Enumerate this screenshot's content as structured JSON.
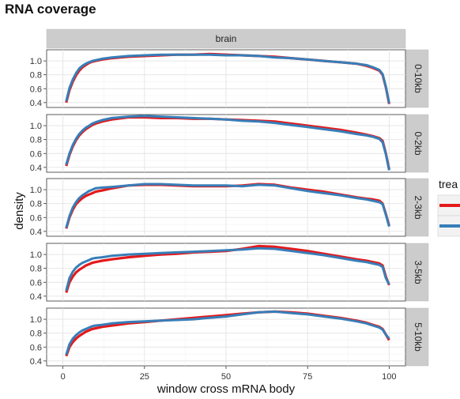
{
  "chart_data": {
    "type": "line",
    "title": "RNA coverage",
    "xlabel": "window cross mRNA body",
    "ylabel": "density",
    "column_strip": "brain",
    "xlim": [
      -5,
      105
    ],
    "x_ticks": [
      0,
      25,
      50,
      75,
      100
    ],
    "y_ticks": [
      0.4,
      0.6,
      0.8,
      1.0
    ],
    "ylim": [
      0.33,
      1.16
    ],
    "grid": true,
    "legend": {
      "title": "trea",
      "position": "right",
      "colors": [
        "#e41a1c",
        "#377eb8"
      ]
    },
    "x": [
      1,
      2,
      3,
      4,
      5,
      6,
      7,
      8,
      9,
      10,
      12,
      15,
      20,
      25,
      30,
      35,
      40,
      45,
      50,
      55,
      60,
      65,
      70,
      75,
      80,
      85,
      90,
      93,
      95,
      97,
      98,
      99,
      100
    ],
    "panels": [
      {
        "label": "0-10kb",
        "series": [
          {
            "color": "#e41a1c",
            "values": [
              0.4,
              0.58,
              0.7,
              0.79,
              0.86,
              0.91,
              0.94,
              0.97,
              0.99,
              1.0,
              1.02,
              1.04,
              1.06,
              1.07,
              1.08,
              1.09,
              1.09,
              1.1,
              1.09,
              1.08,
              1.07,
              1.06,
              1.04,
              1.02,
              1.0,
              0.98,
              0.96,
              0.93,
              0.9,
              0.86,
              0.8,
              0.62,
              0.38
            ]
          },
          {
            "color": "#377eb8",
            "values": [
              0.42,
              0.61,
              0.73,
              0.82,
              0.89,
              0.93,
              0.96,
              0.98,
              1.0,
              1.01,
              1.03,
              1.05,
              1.07,
              1.08,
              1.09,
              1.09,
              1.09,
              1.09,
              1.08,
              1.08,
              1.07,
              1.05,
              1.04,
              1.02,
              1.0,
              0.98,
              0.96,
              0.94,
              0.91,
              0.87,
              0.81,
              0.63,
              0.39
            ]
          }
        ]
      },
      {
        "label": "0-2kb",
        "series": [
          {
            "color": "#e41a1c",
            "values": [
              0.42,
              0.58,
              0.7,
              0.79,
              0.86,
              0.91,
              0.95,
              0.98,
              1.01,
              1.03,
              1.06,
              1.09,
              1.12,
              1.12,
              1.11,
              1.11,
              1.1,
              1.1,
              1.09,
              1.08,
              1.07,
              1.06,
              1.03,
              1.0,
              0.97,
              0.94,
              0.9,
              0.87,
              0.85,
              0.82,
              0.78,
              0.6,
              0.37
            ]
          },
          {
            "color": "#377eb8",
            "values": [
              0.44,
              0.6,
              0.72,
              0.81,
              0.88,
              0.93,
              0.97,
              1.0,
              1.03,
              1.05,
              1.08,
              1.11,
              1.13,
              1.14,
              1.13,
              1.12,
              1.11,
              1.1,
              1.09,
              1.07,
              1.06,
              1.04,
              1.01,
              0.98,
              0.95,
              0.92,
              0.88,
              0.86,
              0.84,
              0.81,
              0.76,
              0.59,
              0.36
            ]
          }
        ]
      },
      {
        "label": "2-3kb",
        "series": [
          {
            "color": "#e41a1c",
            "values": [
              0.44,
              0.6,
              0.71,
              0.79,
              0.84,
              0.88,
              0.91,
              0.93,
              0.95,
              0.97,
              0.99,
              1.02,
              1.06,
              1.07,
              1.07,
              1.06,
              1.05,
              1.05,
              1.05,
              1.06,
              1.08,
              1.07,
              1.03,
              1.0,
              0.97,
              0.93,
              0.89,
              0.87,
              0.86,
              0.84,
              0.8,
              0.65,
              0.48
            ]
          },
          {
            "color": "#377eb8",
            "values": [
              0.45,
              0.62,
              0.74,
              0.82,
              0.88,
              0.92,
              0.95,
              0.98,
              1.0,
              1.02,
              1.03,
              1.04,
              1.06,
              1.08,
              1.08,
              1.07,
              1.06,
              1.06,
              1.06,
              1.05,
              1.07,
              1.06,
              1.02,
              0.98,
              0.95,
              0.92,
              0.88,
              0.86,
              0.84,
              0.82,
              0.79,
              0.64,
              0.47
            ]
          }
        ]
      },
      {
        "label": "3-5kb",
        "series": [
          {
            "color": "#e41a1c",
            "values": [
              0.45,
              0.6,
              0.68,
              0.74,
              0.78,
              0.81,
              0.84,
              0.86,
              0.88,
              0.89,
              0.91,
              0.93,
              0.96,
              0.98,
              1.0,
              1.01,
              1.03,
              1.04,
              1.05,
              1.08,
              1.12,
              1.11,
              1.08,
              1.05,
              1.01,
              0.97,
              0.93,
              0.91,
              0.89,
              0.87,
              0.84,
              0.68,
              0.56
            ]
          },
          {
            "color": "#377eb8",
            "values": [
              0.48,
              0.66,
              0.75,
              0.81,
              0.85,
              0.88,
              0.9,
              0.92,
              0.94,
              0.95,
              0.96,
              0.98,
              1.0,
              1.01,
              1.02,
              1.03,
              1.04,
              1.05,
              1.06,
              1.07,
              1.09,
              1.08,
              1.05,
              1.02,
              0.99,
              0.95,
              0.91,
              0.89,
              0.87,
              0.85,
              0.82,
              0.66,
              0.57
            ]
          }
        ]
      },
      {
        "label": "5-10kb",
        "series": [
          {
            "color": "#e41a1c",
            "values": [
              0.47,
              0.6,
              0.67,
              0.72,
              0.76,
              0.79,
              0.82,
              0.84,
              0.86,
              0.87,
              0.89,
              0.91,
              0.94,
              0.96,
              0.98,
              1.0,
              1.02,
              1.04,
              1.06,
              1.08,
              1.1,
              1.11,
              1.1,
              1.08,
              1.05,
              1.02,
              0.98,
              0.95,
              0.92,
              0.89,
              0.86,
              0.78,
              0.7
            ]
          },
          {
            "color": "#377eb8",
            "values": [
              0.49,
              0.64,
              0.72,
              0.77,
              0.81,
              0.84,
              0.86,
              0.88,
              0.9,
              0.91,
              0.92,
              0.94,
              0.96,
              0.97,
              0.98,
              0.99,
              1.0,
              1.02,
              1.04,
              1.07,
              1.1,
              1.11,
              1.09,
              1.07,
              1.04,
              1.01,
              0.97,
              0.94,
              0.91,
              0.88,
              0.85,
              0.78,
              0.72
            ]
          }
        ]
      }
    ]
  }
}
